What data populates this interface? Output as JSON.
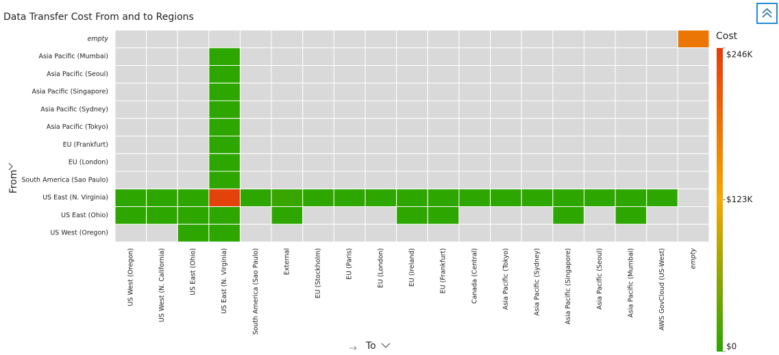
{
  "chart_data": {
    "type": "heatmap",
    "title": "Data Transfer Cost From and to Regions",
    "x_label": "To",
    "y_label": "From",
    "colorbar_title": "Cost",
    "x_categories": [
      "US West (Oregon)",
      "US West (N. California)",
      "US East (Ohio)",
      "US East (N. Virginia)",
      "South America (Sao Paulo)",
      "External",
      "EU (Stockholm)",
      "EU (Paris)",
      "EU (London)",
      "EU (Ireland)",
      "EU (Frankfurt)",
      "Canada (Central)",
      "Asia Pacific (Tokyo)",
      "Asia Pacific (Sydney)",
      "Asia Pacific (Singapore)",
      "Asia Pacific (Seoul)",
      "Asia Pacific (Mumbai)",
      "AWS GovCloud (US-West)",
      "empty"
    ],
    "y_categories": [
      "empty",
      "Asia Pacific (Mumbai)",
      "Asia Pacific (Seoul)",
      "Asia Pacific (Singapore)",
      "Asia Pacific (Sydney)",
      "Asia Pacific (Tokyo)",
      "EU (Frankfurt)",
      "EU (London)",
      "South America (Sao Paulo)",
      "US East (N. Virginia)",
      "US East (Ohio)",
      "US West (Oregon)"
    ],
    "values": [
      [
        null,
        null,
        null,
        null,
        null,
        null,
        null,
        null,
        null,
        null,
        null,
        null,
        null,
        null,
        null,
        null,
        null,
        null,
        180000
      ],
      [
        null,
        null,
        null,
        1000,
        null,
        null,
        null,
        null,
        null,
        null,
        null,
        null,
        null,
        null,
        null,
        null,
        null,
        null,
        null
      ],
      [
        null,
        null,
        null,
        1000,
        null,
        null,
        null,
        null,
        null,
        null,
        null,
        null,
        null,
        null,
        null,
        null,
        null,
        null,
        null
      ],
      [
        null,
        null,
        null,
        1000,
        null,
        null,
        null,
        null,
        null,
        null,
        null,
        null,
        null,
        null,
        null,
        null,
        null,
        null,
        null
      ],
      [
        null,
        null,
        null,
        1000,
        null,
        null,
        null,
        null,
        null,
        null,
        null,
        null,
        null,
        null,
        null,
        null,
        null,
        null,
        null
      ],
      [
        null,
        null,
        null,
        1000,
        null,
        null,
        null,
        null,
        null,
        null,
        null,
        null,
        null,
        null,
        null,
        null,
        null,
        null,
        null
      ],
      [
        null,
        null,
        null,
        1000,
        null,
        null,
        null,
        null,
        null,
        null,
        null,
        null,
        null,
        null,
        null,
        null,
        null,
        null,
        null
      ],
      [
        null,
        null,
        null,
        1000,
        null,
        null,
        null,
        null,
        null,
        null,
        null,
        null,
        null,
        null,
        null,
        null,
        null,
        null,
        null
      ],
      [
        null,
        null,
        null,
        1000,
        null,
        null,
        null,
        null,
        null,
        null,
        null,
        null,
        null,
        null,
        null,
        null,
        null,
        null,
        null
      ],
      [
        1000,
        1000,
        1000,
        240000,
        1000,
        8000,
        1000,
        1000,
        1000,
        1000,
        1000,
        1000,
        1000,
        1000,
        1000,
        1000,
        1000,
        1000,
        null
      ],
      [
        1000,
        1000,
        1000,
        1000,
        null,
        1000,
        null,
        null,
        null,
        1000,
        1000,
        null,
        null,
        null,
        1000,
        null,
        1000,
        null,
        null
      ],
      [
        null,
        null,
        1000,
        1000,
        null,
        null,
        null,
        null,
        null,
        null,
        null,
        null,
        null,
        null,
        null,
        null,
        null,
        null,
        null
      ]
    ],
    "colorlim": [
      0,
      246000
    ],
    "colorticks": [
      {
        "value": 0,
        "label": "$0"
      },
      {
        "value": 123000,
        "label": "$123K"
      },
      {
        "value": 246000,
        "label": "$246K"
      }
    ],
    "colorscale": [
      "#2ca600",
      "#f5a800",
      "#e23d0b"
    ],
    "empty_color": "#d9d9d9"
  }
}
